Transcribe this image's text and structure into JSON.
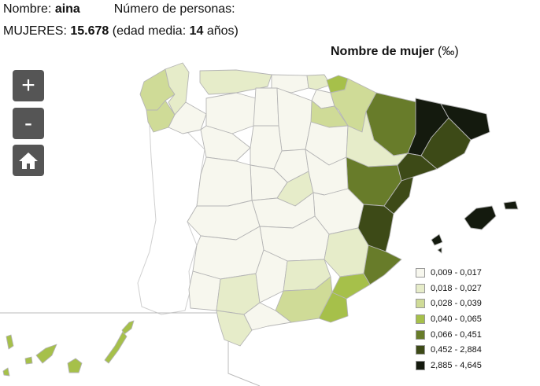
{
  "header": {
    "name_label": "Nombre:",
    "name_value": "aina",
    "persons_label": "Número de personas:",
    "women_label": "MUJERES:",
    "women_value": "15.678",
    "age_prefix": "(edad media:",
    "age_value": "14",
    "age_suffix": "años)"
  },
  "map": {
    "title": "Nombre de mujer",
    "unit": "(‰)"
  },
  "controls": {
    "zoom_in": "+",
    "zoom_out": "-"
  },
  "legend": [
    {
      "label": "0,009 - 0,017",
      "color": "#f7f7ee"
    },
    {
      "label": "0,018 - 0,027",
      "color": "#e6ecc9"
    },
    {
      "label": "0,028 - 0,039",
      "color": "#cfdb97"
    },
    {
      "label": "0,040 - 0,065",
      "color": "#a6c04a"
    },
    {
      "label": "0,066 - 0,451",
      "color": "#687c2a"
    },
    {
      "label": "0,452 - 2,884",
      "color": "#3d4a17"
    },
    {
      "label": "2,885 - 4,645",
      "color": "#141a0e"
    }
  ],
  "provinces": {
    "a-coruna": 2,
    "lugo": 1,
    "pontevedra": 2,
    "ourense": 0,
    "asturias": 1,
    "cantabria": 0,
    "bizkaia": 1,
    "gipuzkoa": 3,
    "alava": 0,
    "navarra": 2,
    "la-rioja": 2,
    "leon": 0,
    "palencia": 0,
    "burgos": 0,
    "zamora": 0,
    "valladolid": 0,
    "soria": 0,
    "segovia": 0,
    "avila": 0,
    "salamanca": 0,
    "huesca": 4,
    "zaragoza": 1,
    "teruel": 4,
    "lleida": 6,
    "girona": 6,
    "barcelona": 5,
    "tarragona": 5,
    "madrid": 1,
    "guadalajara": 0,
    "cuenca": 0,
    "toledo": 0,
    "ciudad-real": 0,
    "albacete": 1,
    "caceres": 0,
    "badajoz": 0,
    "castellon": 5,
    "valencia": 5,
    "alicante": 4,
    "murcia": 3,
    "mallorca": 6,
    "menorca": 6,
    "ibiza": 6,
    "formentera": 6,
    "huelva": 0,
    "sevilla": 1,
    "cordoba": 0,
    "jaen": 1,
    "granada": 2,
    "almeria": 3,
    "cadiz": 1,
    "malaga": 0,
    "lanzarote": 3,
    "fuerteventura": 3,
    "gran-canaria": 3,
    "tenerife": 3,
    "la-gomera": 3,
    "la-palma": 3,
    "el-hierro": 3
  }
}
